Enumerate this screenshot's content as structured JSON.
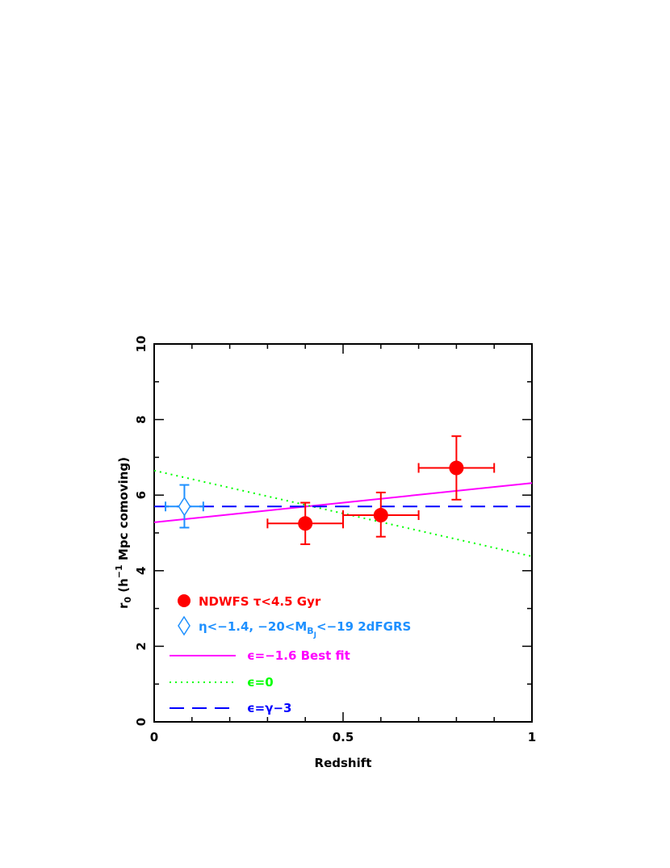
{
  "chart_data": {
    "type": "scatter",
    "title": "",
    "xlabel": "Redshift",
    "ylabel": "r",
    "ylabel_sub": "0",
    "ylabel_rest_a": " (h",
    "ylabel_sup": "−1",
    "ylabel_rest_b": " Mpc comoving)",
    "xlim": [
      0,
      1
    ],
    "ylim": [
      0,
      10
    ],
    "x_ticks": [
      0,
      0.5,
      1
    ],
    "x_tick_labels": [
      "0",
      "0.5",
      "1"
    ],
    "y_ticks": [
      0,
      2,
      4,
      6,
      8,
      10
    ],
    "y_tick_labels": [
      "0",
      "2",
      "4",
      "6",
      "8",
      "10"
    ],
    "grid": false,
    "legend_position": "bottom-left",
    "series": [
      {
        "key": "ndwfs",
        "label": "NDWFS τ<4.5 Gyr",
        "marker": "filled-circle",
        "color": "#ff0000",
        "points": [
          {
            "x": 0.4,
            "y": 5.25,
            "x_lo": 0.3,
            "x_hi": 0.5,
            "y_lo": 4.7,
            "y_hi": 5.8
          },
          {
            "x": 0.6,
            "y": 5.47,
            "x_lo": 0.5,
            "x_hi": 0.7,
            "y_lo": 4.9,
            "y_hi": 6.07
          },
          {
            "x": 0.8,
            "y": 6.72,
            "x_lo": 0.7,
            "x_hi": 0.9,
            "y_lo": 5.88,
            "y_hi": 7.56
          }
        ]
      },
      {
        "key": "twodf",
        "label_parts": {
          "pre": "η<−1.4, −20<M",
          "sub": "B",
          "subsub": "J",
          "post": "<−19 2dFGRS"
        },
        "marker": "open-diamond",
        "color": "#1e90ff",
        "points": [
          {
            "x": 0.08,
            "y": 5.7,
            "x_lo": 0.03,
            "x_hi": 0.13,
            "y_lo": 5.14,
            "y_hi": 6.27
          }
        ]
      }
    ],
    "lines": [
      {
        "key": "best_fit",
        "label": "ϵ=−1.6 Best fit",
        "style": "solid",
        "color": "#ff00ff",
        "x": [
          0,
          1
        ],
        "y": [
          5.28,
          6.32
        ]
      },
      {
        "key": "eps0",
        "label": "ϵ=0",
        "style": "dotted",
        "color": "#00ff00",
        "x": [
          0,
          1
        ],
        "y": [
          6.65,
          4.38
        ]
      },
      {
        "key": "gamma",
        "label": "ϵ=γ−3",
        "style": "dashed",
        "color": "#0000ff",
        "x": [
          0,
          1
        ],
        "y": [
          5.7,
          5.7
        ]
      }
    ]
  }
}
